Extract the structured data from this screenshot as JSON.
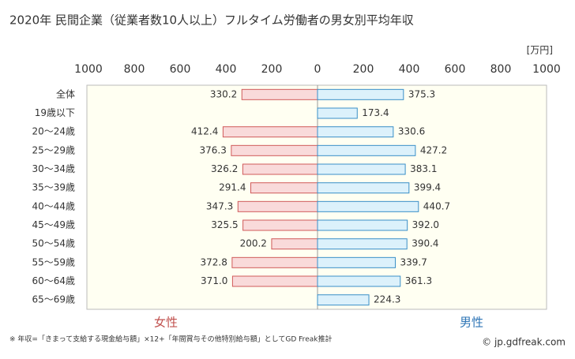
{
  "chart_data": {
    "type": "butterfly-bar",
    "title": "2020年 民間企業（従業者数10人以上）フルタイム労働者の男女別平均年収",
    "unit": "[万円]",
    "categories": [
      "全体",
      "19歳以下",
      "20〜24歳",
      "25〜29歳",
      "30〜34歳",
      "35〜39歳",
      "40〜44歳",
      "45〜49歳",
      "50〜54歳",
      "55〜59歳",
      "60〜64歳",
      "65〜69歳"
    ],
    "xlim": [
      0,
      1000
    ],
    "xticks": [
      0,
      200,
      400,
      600,
      800,
      1000
    ],
    "series": [
      {
        "name": "女性",
        "side": "left",
        "color": "#f9dada",
        "edge": "#d05a5a",
        "label_color": "#c0504d",
        "values": [
          330.2,
          null,
          412.4,
          376.3,
          326.2,
          291.4,
          347.3,
          325.5,
          200.2,
          372.8,
          371.0,
          null
        ],
        "value_labels": [
          "330.2",
          null,
          "412.4",
          "376.3",
          "326.2",
          "291.4",
          "347.3",
          "325.5",
          "200.2",
          "372.8",
          "371.0",
          null
        ]
      },
      {
        "name": "男性",
        "side": "right",
        "color": "#dcf1fb",
        "edge": "#3a8fc8",
        "label_color": "#2e75b6",
        "values": [
          375.3,
          173.4,
          330.6,
          427.2,
          383.1,
          399.4,
          440.7,
          392.0,
          390.4,
          339.7,
          361.3,
          224.3
        ],
        "value_labels": [
          "375.3",
          "173.4",
          "330.6",
          "427.2",
          "383.1",
          "399.4",
          "440.7",
          "392.0",
          "390.4",
          "339.7",
          "361.3",
          "224.3"
        ]
      }
    ],
    "footnote": "※ 年収=「きまって支給する現金給与額」×12+「年間賞与その他特別給与額」としてGD Freak推計",
    "source": "© jp.gdfreak.com"
  }
}
